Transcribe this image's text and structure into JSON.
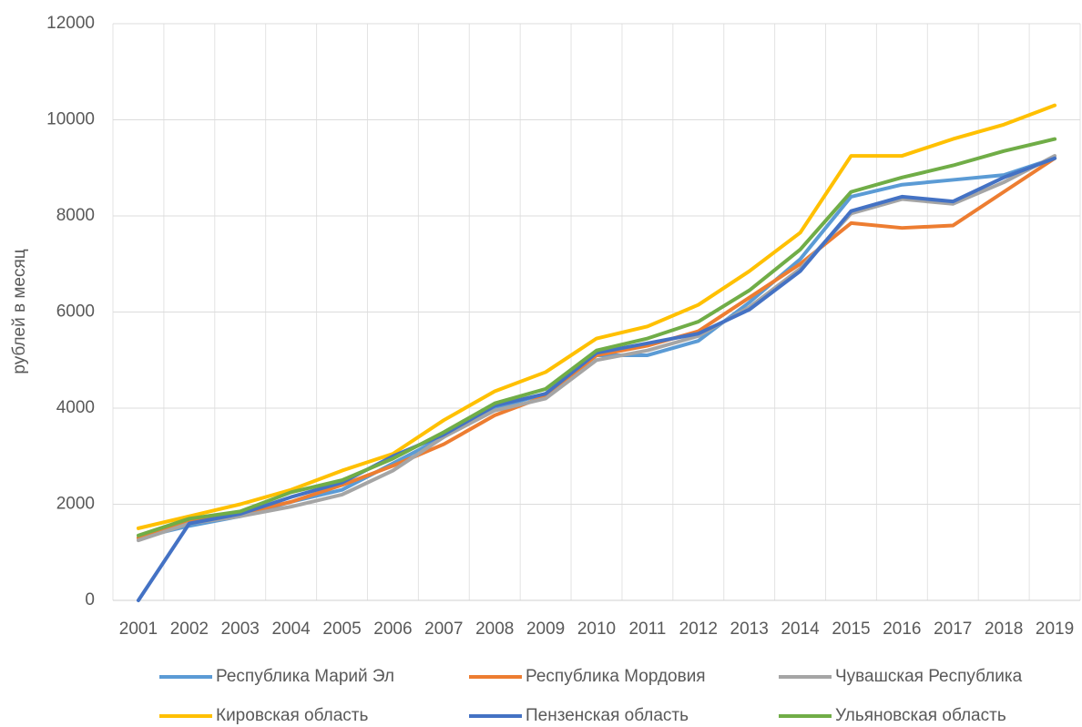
{
  "chart_data": {
    "type": "line",
    "y_label": "рублей в месяц",
    "categories": [
      "2001",
      "2002",
      "2003",
      "2004",
      "2005",
      "2006",
      "2007",
      "2008",
      "2009",
      "2010",
      "2011",
      "2012",
      "2013",
      "2014",
      "2015",
      "2016",
      "2017",
      "2018",
      "2019"
    ],
    "ylim": [
      0,
      12000
    ],
    "yticks": [
      0,
      2000,
      4000,
      6000,
      8000,
      10000,
      12000
    ],
    "grid": true,
    "series": [
      {
        "name": "Республика Марий Эл",
        "color": "#5b9bd5",
        "values": [
          1300,
          1550,
          1750,
          2050,
          2300,
          2850,
          3400,
          4000,
          4300,
          5100,
          5100,
          5400,
          6200,
          7100,
          8400,
          8650,
          8750,
          8850,
          9200
        ]
      },
      {
        "name": "Республика Мордовия",
        "color": "#ed7d31",
        "values": [
          1300,
          1650,
          1800,
          2050,
          2400,
          2800,
          3250,
          3850,
          4250,
          5100,
          5300,
          5600,
          6300,
          7000,
          7850,
          7750,
          7800,
          8500,
          9200
        ]
      },
      {
        "name": "Чувашская Республика",
        "color": "#a5a5a5",
        "values": [
          1250,
          1600,
          1750,
          1950,
          2200,
          2700,
          3400,
          3950,
          4200,
          5000,
          5200,
          5500,
          6100,
          6900,
          8050,
          8350,
          8250,
          8700,
          9250
        ]
      },
      {
        "name": "Кировская область",
        "color": "#ffc000",
        "values": [
          1500,
          1750,
          2000,
          2300,
          2700,
          3050,
          3750,
          4350,
          4750,
          5450,
          5700,
          6150,
          6850,
          7650,
          9250,
          9250,
          9600,
          9900,
          10300
        ]
      },
      {
        "name": "Пензенская область",
        "color": "#4472c4",
        "values": [
          0,
          1600,
          1800,
          2150,
          2450,
          3000,
          3450,
          4050,
          4300,
          5150,
          5350,
          5550,
          6050,
          6850,
          8100,
          8400,
          8300,
          8800,
          9200
        ]
      },
      {
        "name": "Ульяновская область",
        "color": "#70ad47",
        "values": [
          1350,
          1700,
          1850,
          2250,
          2500,
          2950,
          3500,
          4100,
          4400,
          5200,
          5450,
          5800,
          6450,
          7300,
          8500,
          8800,
          9050,
          9350,
          9600
        ]
      }
    ]
  }
}
